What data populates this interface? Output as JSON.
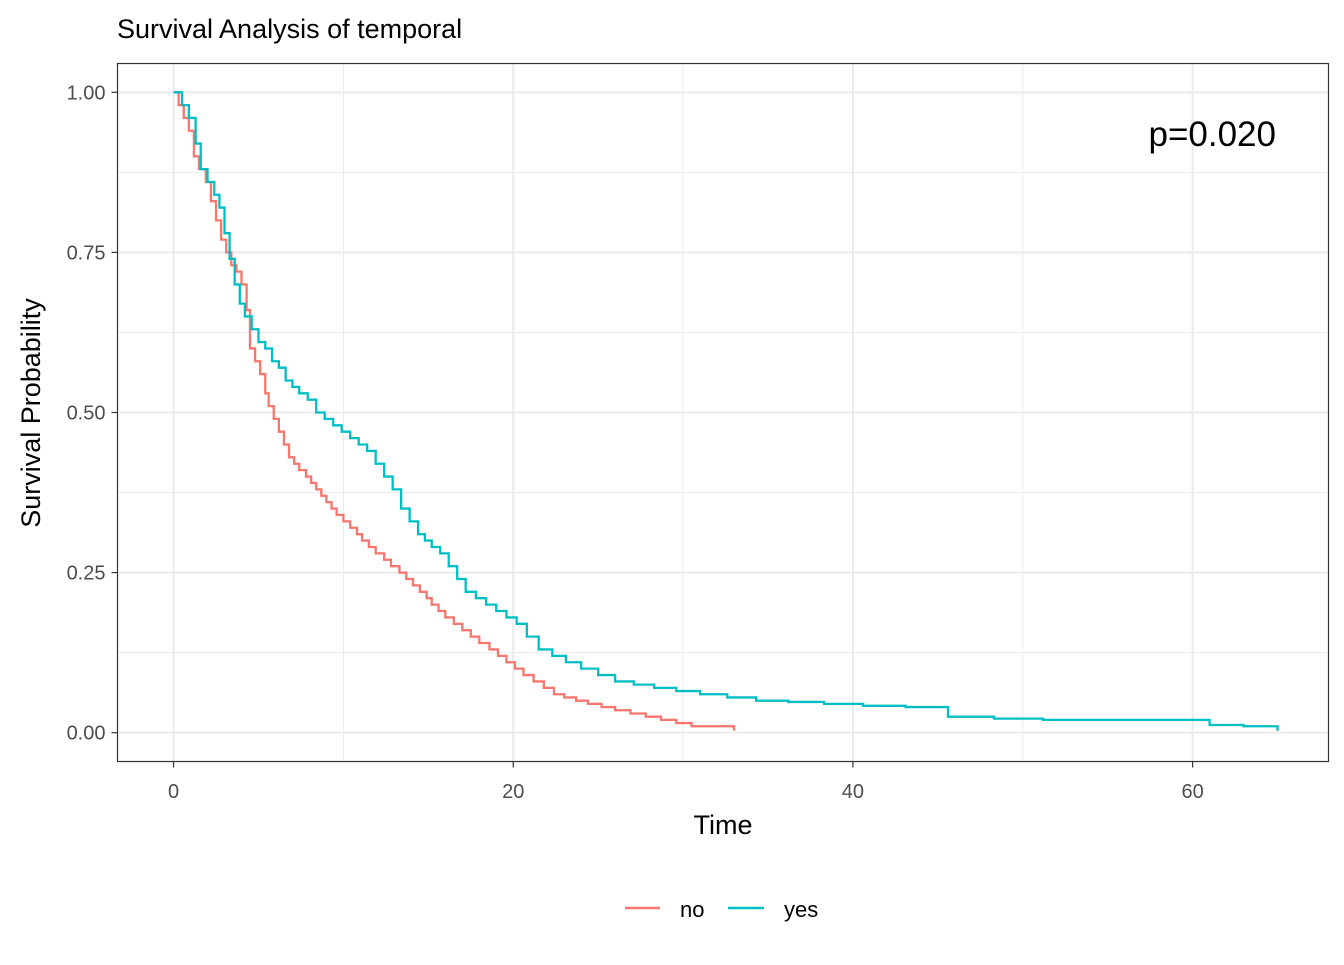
{
  "chart_data": {
    "type": "line",
    "step": true,
    "title": "Survival Analysis of temporal",
    "xlabel": "Time",
    "ylabel": "Survival Probability",
    "xlim": [
      -3.3,
      68
    ],
    "ylim": [
      -0.045,
      1.045
    ],
    "x_ticks": [
      0,
      20,
      40,
      60
    ],
    "x_tick_labels": [
      "0",
      "20",
      "40",
      "60"
    ],
    "x_minor_ticks": [
      10,
      30,
      50
    ],
    "y_ticks": [
      0,
      0.25,
      0.5,
      0.75,
      1
    ],
    "y_tick_labels": [
      "0.00",
      "0.25",
      "0.50",
      "0.75",
      "1.00"
    ],
    "y_minor_ticks": [
      0.125,
      0.375,
      0.625,
      0.875
    ],
    "grid": true,
    "legend_position": "bottom",
    "annotation": "p=0.020",
    "series": [
      {
        "name": "no",
        "color": "#f8766d",
        "x": [
          0,
          0.3,
          0.6,
          0.9,
          1.2,
          1.5,
          1.9,
          2.2,
          2.5,
          2.8,
          3.1,
          3.4,
          3.7,
          4.0,
          4.3,
          4.5,
          4.8,
          5.1,
          5.4,
          5.6,
          5.9,
          6.2,
          6.5,
          6.8,
          7.1,
          7.4,
          7.8,
          8.1,
          8.4,
          8.7,
          9.0,
          9.3,
          9.6,
          10.0,
          10.4,
          10.8,
          11.1,
          11.5,
          11.9,
          12.4,
          12.8,
          13.3,
          13.7,
          14.1,
          14.5,
          14.9,
          15.2,
          15.6,
          16.0,
          16.5,
          17.0,
          17.5,
          18.0,
          18.6,
          19.1,
          19.6,
          20.1,
          20.6,
          21.2,
          21.8,
          22.4,
          23.0,
          23.7,
          24.4,
          25.2,
          26.0,
          26.9,
          27.8,
          28.7,
          29.6,
          30.5,
          31.3,
          32.0,
          33.0
        ],
        "y": [
          1.0,
          0.98,
          0.96,
          0.94,
          0.9,
          0.88,
          0.86,
          0.83,
          0.8,
          0.77,
          0.75,
          0.73,
          0.72,
          0.7,
          0.66,
          0.6,
          0.58,
          0.56,
          0.53,
          0.51,
          0.49,
          0.47,
          0.45,
          0.43,
          0.42,
          0.41,
          0.4,
          0.39,
          0.38,
          0.37,
          0.36,
          0.35,
          0.34,
          0.33,
          0.32,
          0.31,
          0.3,
          0.29,
          0.28,
          0.27,
          0.26,
          0.25,
          0.24,
          0.23,
          0.22,
          0.21,
          0.2,
          0.19,
          0.18,
          0.17,
          0.16,
          0.15,
          0.14,
          0.13,
          0.12,
          0.11,
          0.1,
          0.09,
          0.08,
          0.07,
          0.06,
          0.055,
          0.05,
          0.045,
          0.04,
          0.035,
          0.03,
          0.025,
          0.02,
          0.015,
          0.01,
          0.01,
          0.01,
          0.003
        ]
      },
      {
        "name": "yes",
        "color": "#00bfc4",
        "x": [
          0,
          0.5,
          0.9,
          1.3,
          1.6,
          2.0,
          2.4,
          2.7,
          3.0,
          3.3,
          3.6,
          3.9,
          4.2,
          4.6,
          5.0,
          5.4,
          5.8,
          6.2,
          6.6,
          7.0,
          7.4,
          7.9,
          8.4,
          8.9,
          9.4,
          9.9,
          10.4,
          10.9,
          11.4,
          11.9,
          12.4,
          12.9,
          13.4,
          13.9,
          14.4,
          14.8,
          15.2,
          15.7,
          16.2,
          16.7,
          17.2,
          17.8,
          18.4,
          19.0,
          19.6,
          20.2,
          20.8,
          21.5,
          22.3,
          23.1,
          24.0,
          25.0,
          26.0,
          27.1,
          28.3,
          29.6,
          31.0,
          32.6,
          34.3,
          36.2,
          38.3,
          40.6,
          43.1,
          45.6,
          48.3,
          51.2,
          54.3,
          57.6,
          61.0,
          63.0,
          65.0
        ],
        "y": [
          1.0,
          0.98,
          0.96,
          0.92,
          0.88,
          0.86,
          0.84,
          0.82,
          0.78,
          0.74,
          0.7,
          0.67,
          0.65,
          0.63,
          0.61,
          0.6,
          0.58,
          0.57,
          0.55,
          0.54,
          0.53,
          0.52,
          0.5,
          0.49,
          0.48,
          0.47,
          0.46,
          0.45,
          0.44,
          0.42,
          0.4,
          0.38,
          0.35,
          0.33,
          0.31,
          0.3,
          0.29,
          0.28,
          0.26,
          0.24,
          0.22,
          0.21,
          0.2,
          0.19,
          0.18,
          0.17,
          0.15,
          0.13,
          0.12,
          0.11,
          0.1,
          0.09,
          0.08,
          0.075,
          0.07,
          0.065,
          0.06,
          0.055,
          0.05,
          0.048,
          0.045,
          0.042,
          0.04,
          0.025,
          0.022,
          0.02,
          0.02,
          0.02,
          0.012,
          0.01,
          0.003
        ]
      }
    ]
  }
}
